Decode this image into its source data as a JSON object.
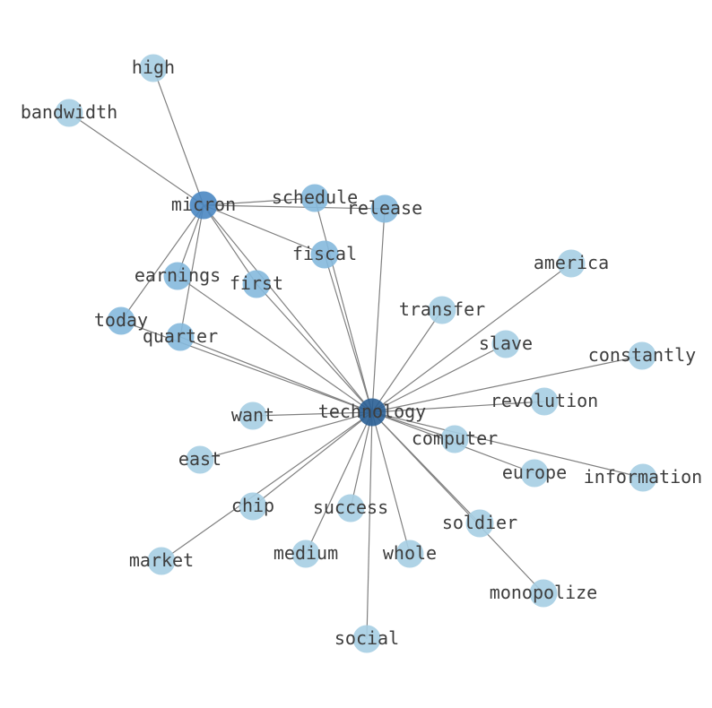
{
  "colors": {
    "edge": "#808080",
    "label": "#3d3d3d",
    "low": "#a6cee3",
    "mid": "#85b9dd",
    "high": "#4a87c2",
    "hub": "#2a5f95"
  },
  "nodes": [
    {
      "id": "technology",
      "level": "hub"
    },
    {
      "id": "micron",
      "level": "high"
    },
    {
      "id": "high",
      "level": "low"
    },
    {
      "id": "bandwidth",
      "level": "low"
    },
    {
      "id": "schedule",
      "level": "mid"
    },
    {
      "id": "release",
      "level": "mid"
    },
    {
      "id": "fiscal",
      "level": "mid"
    },
    {
      "id": "earnings",
      "level": "mid"
    },
    {
      "id": "first",
      "level": "mid"
    },
    {
      "id": "today",
      "level": "mid"
    },
    {
      "id": "quarter",
      "level": "mid"
    },
    {
      "id": "america",
      "level": "low"
    },
    {
      "id": "transfer",
      "level": "low"
    },
    {
      "id": "slave",
      "level": "low"
    },
    {
      "id": "constantly",
      "level": "low"
    },
    {
      "id": "revolution",
      "level": "low"
    },
    {
      "id": "want",
      "level": "low"
    },
    {
      "id": "computer",
      "level": "low"
    },
    {
      "id": "east",
      "level": "low"
    },
    {
      "id": "europe",
      "level": "low"
    },
    {
      "id": "information",
      "level": "low"
    },
    {
      "id": "chip",
      "level": "low"
    },
    {
      "id": "success",
      "level": "low"
    },
    {
      "id": "soldier",
      "level": "low"
    },
    {
      "id": "market",
      "level": "low"
    },
    {
      "id": "medium",
      "level": "low"
    },
    {
      "id": "whole",
      "level": "low"
    },
    {
      "id": "monopolize",
      "level": "low"
    },
    {
      "id": "social",
      "level": "low"
    }
  ],
  "edges": [
    [
      "micron",
      "high"
    ],
    [
      "micron",
      "bandwidth"
    ],
    [
      "micron",
      "schedule"
    ],
    [
      "micron",
      "release"
    ],
    [
      "micron",
      "fiscal"
    ],
    [
      "micron",
      "earnings"
    ],
    [
      "micron",
      "first"
    ],
    [
      "micron",
      "today"
    ],
    [
      "micron",
      "quarter"
    ],
    [
      "micron",
      "technology"
    ],
    [
      "technology",
      "release"
    ],
    [
      "technology",
      "schedule"
    ],
    [
      "technology",
      "fiscal"
    ],
    [
      "technology",
      "earnings"
    ],
    [
      "technology",
      "first"
    ],
    [
      "technology",
      "quarter"
    ],
    [
      "technology",
      "today"
    ],
    [
      "technology",
      "america"
    ],
    [
      "technology",
      "transfer"
    ],
    [
      "technology",
      "slave"
    ],
    [
      "technology",
      "constantly"
    ],
    [
      "technology",
      "revolution"
    ],
    [
      "technology",
      "want"
    ],
    [
      "technology",
      "computer"
    ],
    [
      "technology",
      "east"
    ],
    [
      "technology",
      "europe"
    ],
    [
      "technology",
      "information"
    ],
    [
      "technology",
      "chip"
    ],
    [
      "technology",
      "market"
    ],
    [
      "technology",
      "success"
    ],
    [
      "technology",
      "soldier"
    ],
    [
      "technology",
      "medium"
    ],
    [
      "technology",
      "whole"
    ],
    [
      "technology",
      "monopolize"
    ],
    [
      "technology",
      "social"
    ]
  ]
}
